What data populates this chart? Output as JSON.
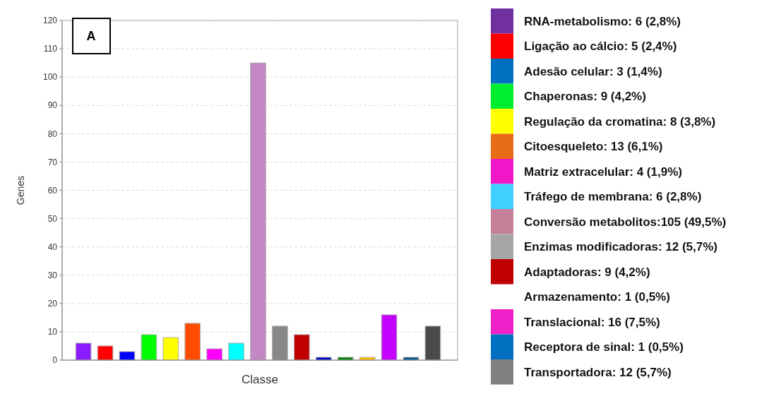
{
  "chart_data": [
    {
      "type": "bar",
      "xlabel": "Classe",
      "ylabel": "Genes",
      "annotations": [
        "A"
      ],
      "categories": [
        null,
        null,
        null,
        null,
        null,
        null,
        null,
        null,
        null,
        null,
        null,
        null,
        null,
        null,
        null,
        null,
        null
      ],
      "values": [
        6,
        5,
        3,
        9,
        8,
        13,
        4,
        6,
        105,
        12,
        9,
        1,
        1,
        1,
        16,
        1,
        12
      ],
      "colors": [
        "#8b1cff",
        "#ff0000",
        "#0000ff",
        "#00ff00",
        "#ffff00",
        "#ff4c00",
        "#ff00ff",
        "#00ffff",
        "#c387c3",
        "#878787",
        "#c00000",
        "#0000c0",
        "#008000",
        "#ffc000",
        "#c400ff",
        "#00508a",
        "#4a4a4a"
      ],
      "ylim": [
        0,
        120
      ],
      "yticks": [
        0,
        10,
        20,
        30,
        40,
        50,
        60,
        70,
        80,
        90,
        100,
        110,
        120
      ],
      "grid": "y",
      "tick_labels": "y"
    },
    {
      "type": "other",
      "annotations": [
        "RNA-metabolismo: 6 (2,8%)",
        "Ligação ao cálcio: 5 (2,4%)",
        "Adesão celular: 3 (1,4%)",
        "Chaperonas: 9 (4,2%)",
        "Regulação da cromatina: 8 (3,8%)",
        "Citoesqueleto: 13 (6,1%)",
        "Matriz extracelular: 4 (1,9%)",
        "Tráfego de membrana: 6 (2,8%)",
        "Conversão metabolitos:105 (49,5%)",
        "Enzimas modificadoras: 12 (5,7%)",
        "Adaptadoras: 9 (4,2%)",
        "Armazenamento: 1 (0,5%)",
        "Translacional: 16 (7,5%)",
        "Receptora de sinal: 1 (0,5%)",
        "Transportadora: 12 (5,7%)"
      ],
      "colors": [
        "#7030a0",
        "#ff0000",
        "#0070c0",
        "#00ee30",
        "#ffff00",
        "#e86c18",
        "#f018c8",
        "#40d0ff",
        "#c48098",
        "#a6a6a6",
        "#c00000",
        null,
        "#f020c8",
        "#0070c0",
        "#808080"
      ]
    }
  ]
}
